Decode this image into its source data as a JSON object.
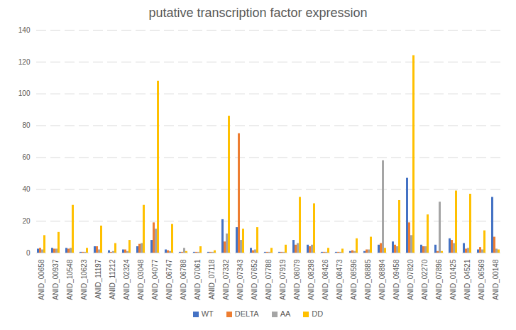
{
  "chart_data": {
    "type": "bar",
    "title": "putative transcription factor expression",
    "categories": [
      "ANID_00658",
      "ANID_00937",
      "ANID_10548",
      "ANID_10623",
      "ANID_11197",
      "ANID_11212",
      "ANID_02324",
      "ANID_03048",
      "ANID_04077",
      "ANID_06747",
      "ANID_06788",
      "ANID_07061",
      "ANID_07118",
      "ANID_07332",
      "ANID_07343",
      "ANID_07652",
      "ANID_07788",
      "ANID_07919",
      "ANID_08079",
      "ANID_08298",
      "ANID_08426",
      "ANID_08473",
      "ANID_08596",
      "ANID_08885",
      "ANID_08894",
      "ANID_09458",
      "ANID_07820",
      "ANID_02270",
      "ANID_07896",
      "ANID_01425",
      "ANID_04521",
      "ANID_06569",
      "ANID_00148"
    ],
    "series": [
      {
        "name": "WT",
        "color": "#4472c4",
        "values": [
          2.5,
          3,
          3,
          0.5,
          4,
          1.5,
          2,
          4,
          8,
          2,
          0.5,
          0.5,
          0.5,
          21,
          16,
          3,
          0.5,
          0.5,
          8,
          5,
          0.5,
          0.5,
          1,
          1,
          5,
          7,
          47,
          5,
          5,
          9,
          6,
          2,
          35
        ]
      },
      {
        "name": "DELTA",
        "color": "#ed7d31",
        "values": [
          3,
          2.5,
          2.5,
          0.5,
          4,
          0.5,
          2,
          5.5,
          19,
          1.5,
          0.5,
          0.5,
          0.5,
          7,
          75,
          1.5,
          0.5,
          0.5,
          5,
          4,
          0.5,
          0.5,
          1.5,
          2,
          6,
          5,
          19,
          4,
          1,
          8,
          2.5,
          3.5,
          10
        ]
      },
      {
        "name": "AA",
        "color": "#a5a5a5",
        "values": [
          2,
          2.5,
          3,
          0.5,
          2,
          1,
          1,
          6,
          15,
          1,
          3,
          0.5,
          0.5,
          12,
          8,
          2,
          0.5,
          0.5,
          6,
          5,
          0.5,
          0.5,
          1,
          2,
          58,
          4,
          11,
          4,
          32,
          6,
          3,
          2,
          2.5
        ]
      },
      {
        "name": "DD",
        "color": "#ffc000",
        "values": [
          11,
          13,
          30,
          3,
          17,
          6,
          8,
          30,
          108,
          18,
          1,
          4,
          1.5,
          86,
          15,
          16,
          3,
          5,
          35,
          31,
          3,
          2.5,
          9,
          10,
          3,
          33,
          124,
          24,
          1,
          39,
          37,
          14,
          2
        ]
      }
    ],
    "ylim": [
      0,
      140
    ],
    "yticks": [
      0,
      20,
      40,
      60,
      80,
      100,
      120,
      140
    ],
    "grid": true,
    "legend": "bottom"
  }
}
